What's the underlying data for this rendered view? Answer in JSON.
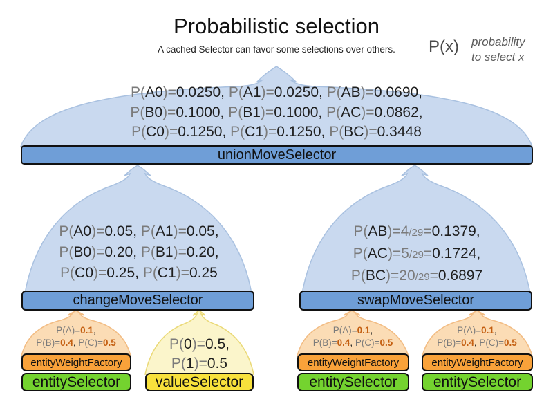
{
  "header": {
    "title": "Probabilistic selection",
    "subtitle": "A cached Selector can favor some selections over others."
  },
  "legend": {
    "symbol": "P(x)",
    "description_line1": "probability",
    "description_line2": "to select x"
  },
  "colors": {
    "funnel_blue": "#c9d9ef",
    "selector_bar_blue": "#6f9ed7",
    "entity_weight_orange": "#f9a23a",
    "entity_selector_green": "#74d32f",
    "value_selector_yellow": "#f8e13c",
    "funnel_orange": "#fbdcb5",
    "funnel_yellow": "#fbf5cb",
    "probability_value_orange": "#c45f11",
    "muted_gray_text": "#7b7b7b"
  },
  "union": {
    "bar_label": "unionMoveSelector",
    "lines": [
      [
        {
          "t": "P(",
          "c": "g"
        },
        {
          "t": "A0"
        },
        {
          "t": ")=",
          "c": "g"
        },
        {
          "t": "0.0250, "
        },
        {
          "t": "P(",
          "c": "g"
        },
        {
          "t": "A1"
        },
        {
          "t": ")=",
          "c": "g"
        },
        {
          "t": "0.0250, "
        },
        {
          "t": "P(",
          "c": "g"
        },
        {
          "t": "AB"
        },
        {
          "t": ")=",
          "c": "g"
        },
        {
          "t": "0.0690,"
        }
      ],
      [
        {
          "t": "P(",
          "c": "g"
        },
        {
          "t": "B0"
        },
        {
          "t": ")=",
          "c": "g"
        },
        {
          "t": "0.1000, "
        },
        {
          "t": "P(",
          "c": "g"
        },
        {
          "t": "B1"
        },
        {
          "t": ")=",
          "c": "g"
        },
        {
          "t": "0.1000, "
        },
        {
          "t": "P(",
          "c": "g"
        },
        {
          "t": "AC"
        },
        {
          "t": ")=",
          "c": "g"
        },
        {
          "t": "0.0862,"
        }
      ],
      [
        {
          "t": "P(",
          "c": "g"
        },
        {
          "t": "C0"
        },
        {
          "t": ")=",
          "c": "g"
        },
        {
          "t": "0.1250, "
        },
        {
          "t": "P(",
          "c": "g"
        },
        {
          "t": "C1"
        },
        {
          "t": ")=",
          "c": "g"
        },
        {
          "t": "0.1250, "
        },
        {
          "t": "P(",
          "c": "g"
        },
        {
          "t": "BC"
        },
        {
          "t": ")=",
          "c": "g"
        },
        {
          "t": "0.3448"
        }
      ]
    ]
  },
  "change": {
    "bar_label": "changeMoveSelector",
    "lines": [
      [
        {
          "t": "P(",
          "c": "g"
        },
        {
          "t": "A0"
        },
        {
          "t": ")=",
          "c": "g"
        },
        {
          "t": "0.05, "
        },
        {
          "t": "P(",
          "c": "g"
        },
        {
          "t": "A1"
        },
        {
          "t": ")=",
          "c": "g"
        },
        {
          "t": "0.05,"
        }
      ],
      [
        {
          "t": "P(",
          "c": "g"
        },
        {
          "t": "B0"
        },
        {
          "t": ")=",
          "c": "g"
        },
        {
          "t": "0.20, "
        },
        {
          "t": "P(",
          "c": "g"
        },
        {
          "t": "B1"
        },
        {
          "t": ")=",
          "c": "g"
        },
        {
          "t": "0.20,"
        }
      ],
      [
        {
          "t": "P(",
          "c": "g"
        },
        {
          "t": "C0"
        },
        {
          "t": ")=",
          "c": "g"
        },
        {
          "t": "0.25, "
        },
        {
          "t": "P(",
          "c": "g"
        },
        {
          "t": "C1"
        },
        {
          "t": ")=",
          "c": "g"
        },
        {
          "t": "0.25"
        }
      ]
    ]
  },
  "swap": {
    "bar_label": "swapMoveSelector",
    "lines": [
      [
        {
          "t": "P(",
          "c": "g"
        },
        {
          "t": "AB"
        },
        {
          "t": ")=",
          "c": "g"
        },
        {
          "t": "4",
          "c": "g"
        },
        {
          "t": "/29",
          "c": "s"
        },
        {
          "t": "=",
          "c": "g"
        },
        {
          "t": "0.1379,"
        }
      ],
      [
        {
          "t": "P(",
          "c": "g"
        },
        {
          "t": "AC"
        },
        {
          "t": ")=",
          "c": "g"
        },
        {
          "t": "5",
          "c": "g"
        },
        {
          "t": "/29",
          "c": "s"
        },
        {
          "t": "=",
          "c": "g"
        },
        {
          "t": "0.1724,"
        }
      ],
      [
        {
          "t": "P(",
          "c": "g"
        },
        {
          "t": "BC"
        },
        {
          "t": ")=",
          "c": "g"
        },
        {
          "t": "20",
          "c": "g"
        },
        {
          "t": "/29",
          "c": "s"
        },
        {
          "t": "=",
          "c": "g"
        },
        {
          "t": "0.6897"
        }
      ]
    ]
  },
  "value": {
    "bar_label": "valueSelector",
    "lines": [
      [
        {
          "t": "P(",
          "c": "g"
        },
        {
          "t": "0"
        },
        {
          "t": ")=",
          "c": "g"
        },
        {
          "t": "0.5,"
        }
      ],
      [
        {
          "t": "P(",
          "c": "g"
        },
        {
          "t": "1"
        },
        {
          "t": ")=",
          "c": "g"
        },
        {
          "t": "0.5"
        }
      ]
    ]
  },
  "entity_stacks": [
    {
      "weight_bar_label": "entityWeightFactory",
      "selector_bar_label": "entitySelector",
      "lines": [
        [
          {
            "t": "P(A)=",
            "c": "g"
          },
          {
            "t": "0.1",
            "c": "o"
          },
          {
            "t": ","
          }
        ],
        [
          {
            "t": "P(B)=",
            "c": "g"
          },
          {
            "t": "0.4",
            "c": "o"
          },
          {
            "t": ", "
          },
          {
            "t": "P(C)=",
            "c": "g"
          },
          {
            "t": "0.5",
            "c": "o"
          }
        ]
      ]
    },
    {
      "weight_bar_label": "entityWeightFactory",
      "selector_bar_label": "entitySelector",
      "lines": [
        [
          {
            "t": "P(A)=",
            "c": "g"
          },
          {
            "t": "0.1",
            "c": "o"
          },
          {
            "t": ","
          }
        ],
        [
          {
            "t": "P(B)=",
            "c": "g"
          },
          {
            "t": "0.4",
            "c": "o"
          },
          {
            "t": ", "
          },
          {
            "t": "P(C)=",
            "c": "g"
          },
          {
            "t": "0.5",
            "c": "o"
          }
        ]
      ]
    },
    {
      "weight_bar_label": "entityWeightFactory",
      "selector_bar_label": "entitySelector",
      "lines": [
        [
          {
            "t": "P(A)=",
            "c": "g"
          },
          {
            "t": "0.1",
            "c": "o"
          },
          {
            "t": ","
          }
        ],
        [
          {
            "t": "P(B)=",
            "c": "g"
          },
          {
            "t": "0.4",
            "c": "o"
          },
          {
            "t": ", "
          },
          {
            "t": "P(C)=",
            "c": "g"
          },
          {
            "t": "0.5",
            "c": "o"
          }
        ]
      ]
    }
  ]
}
